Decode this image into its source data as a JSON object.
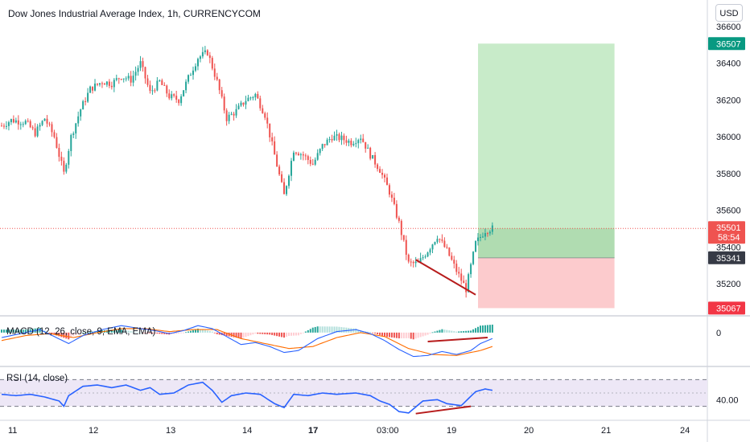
{
  "header": {
    "title": "Dow Jones Industrial Average Index, 1h, CURRENCYCOM",
    "currency": "USD"
  },
  "colors": {
    "up": "#26a69a",
    "down": "#ef5350",
    "macd_line": "#2962ff",
    "signal_line": "#ff6d00",
    "rsi_line": "#2962ff",
    "rsi_band": "#ede7f6",
    "profit_zone": "#c8ebc9",
    "loss_zone": "#fccbcd",
    "divergence": "#b71c1c",
    "target_tag": "#089981",
    "stop_tag": "#f23645",
    "entry_tag": "#363a45"
  },
  "chart_data": [
    {
      "type": "candlestick",
      "pane": "price",
      "title": "Dow Jones Industrial Average Index, 1h, CURRENCYCOM",
      "ylim": [
        35020,
        36720
      ],
      "y_ticks": [
        35200,
        35400,
        35600,
        35800,
        36000,
        36200,
        36400,
        36600
      ],
      "y_tick_labels": [
        "35200",
        "35400",
        "35600",
        "35800",
        "36000",
        "36200",
        "36400",
        "36600"
      ],
      "x_tick_labels": [
        "11",
        "12",
        "13",
        "14",
        "17",
        "03:00",
        "19",
        "20",
        "21",
        "24"
      ],
      "x_tick_bold": [
        false,
        false,
        false,
        false,
        true,
        false,
        false,
        false,
        false,
        false
      ],
      "anchors": [
        [
          0,
          36060
        ],
        [
          4,
          36090
        ],
        [
          10,
          36080
        ],
        [
          14,
          36020
        ],
        [
          18,
          36100
        ],
        [
          22,
          36000
        ],
        [
          26,
          35800
        ],
        [
          29,
          36000
        ],
        [
          33,
          36150
        ],
        [
          37,
          36260
        ],
        [
          42,
          36300
        ],
        [
          46,
          36290
        ],
        [
          50,
          36330
        ],
        [
          54,
          36310
        ],
        [
          58,
          36400
        ],
        [
          62,
          36240
        ],
        [
          66,
          36300
        ],
        [
          70,
          36220
        ],
        [
          74,
          36200
        ],
        [
          78,
          36320
        ],
        [
          82,
          36430
        ],
        [
          86,
          36460
        ],
        [
          90,
          36300
        ],
        [
          94,
          36100
        ],
        [
          98,
          36140
        ],
        [
          102,
          36200
        ],
        [
          106,
          36230
        ],
        [
          110,
          36120
        ],
        [
          114,
          35900
        ],
        [
          118,
          35680
        ],
        [
          122,
          35930
        ],
        [
          126,
          35900
        ],
        [
          130,
          35850
        ],
        [
          134,
          35950
        ],
        [
          138,
          36000
        ],
        [
          142,
          35990
        ],
        [
          146,
          35970
        ],
        [
          150,
          36000
        ],
        [
          154,
          35900
        ],
        [
          158,
          35820
        ],
        [
          162,
          35700
        ],
        [
          166,
          35530
        ],
        [
          170,
          35310
        ],
        [
          174,
          35310
        ],
        [
          178,
          35380
        ],
        [
          182,
          35460
        ],
        [
          186,
          35380
        ],
        [
          190,
          35270
        ],
        [
          194,
          35170
        ],
        [
          198,
          35420
        ],
        [
          202,
          35490
        ],
        [
          205,
          35501
        ]
      ],
      "last_price": "35501",
      "countdown": "58:54",
      "position": {
        "type": "long",
        "target": "36507",
        "entry": "35341",
        "stop": "35067",
        "target_value": 36507,
        "entry_value": 35341,
        "stop_value": 35067
      },
      "divergence_line": {
        "from": [
          173,
          35330
        ],
        "to": [
          198,
          35140
        ]
      }
    },
    {
      "type": "macd",
      "pane": "macd",
      "label": "MACD (12, 26, close, 9, EMA, EMA)",
      "y_tick_labels": [
        "0"
      ],
      "zero_value": 0,
      "anchors_macd": [
        [
          0,
          -25
        ],
        [
          8,
          -5
        ],
        [
          16,
          15
        ],
        [
          22,
          -20
        ],
        [
          28,
          -55
        ],
        [
          34,
          -15
        ],
        [
          42,
          15
        ],
        [
          50,
          35
        ],
        [
          58,
          20
        ],
        [
          64,
          10
        ],
        [
          70,
          -5
        ],
        [
          76,
          10
        ],
        [
          82,
          35
        ],
        [
          88,
          20
        ],
        [
          94,
          -20
        ],
        [
          100,
          -60
        ],
        [
          106,
          -50
        ],
        [
          112,
          -70
        ],
        [
          118,
          -100
        ],
        [
          124,
          -90
        ],
        [
          132,
          -30
        ],
        [
          140,
          5
        ],
        [
          148,
          15
        ],
        [
          154,
          -5
        ],
        [
          160,
          -40
        ],
        [
          166,
          -85
        ],
        [
          172,
          -120
        ],
        [
          178,
          -115
        ],
        [
          184,
          -95
        ],
        [
          190,
          -110
        ],
        [
          196,
          -90
        ],
        [
          200,
          -55
        ],
        [
          205,
          -30
        ]
      ],
      "anchors_signal": [
        [
          0,
          -40
        ],
        [
          10,
          -15
        ],
        [
          20,
          -5
        ],
        [
          30,
          -25
        ],
        [
          40,
          0
        ],
        [
          50,
          20
        ],
        [
          60,
          20
        ],
        [
          70,
          5
        ],
        [
          80,
          15
        ],
        [
          90,
          15
        ],
        [
          100,
          -30
        ],
        [
          110,
          -55
        ],
        [
          120,
          -80
        ],
        [
          130,
          -70
        ],
        [
          140,
          -25
        ],
        [
          150,
          0
        ],
        [
          160,
          -20
        ],
        [
          170,
          -80
        ],
        [
          180,
          -110
        ],
        [
          190,
          -115
        ],
        [
          200,
          -90
        ],
        [
          205,
          -70
        ]
      ],
      "ylim": [
        -150,
        60
      ],
      "divergence_line": {
        "from": [
          178,
          -45
        ],
        "to": [
          203,
          -25
        ]
      }
    },
    {
      "type": "rsi",
      "pane": "rsi",
      "label": "RSI (14, close)",
      "y_tick_labels": [
        "40.00"
      ],
      "ylim": [
        15,
        85
      ],
      "band": [
        30,
        70
      ],
      "midline": 50,
      "anchors": [
        [
          0,
          48
        ],
        [
          6,
          46
        ],
        [
          12,
          48
        ],
        [
          18,
          44
        ],
        [
          24,
          38
        ],
        [
          26,
          30
        ],
        [
          28,
          46
        ],
        [
          34,
          60
        ],
        [
          40,
          62
        ],
        [
          46,
          58
        ],
        [
          52,
          62
        ],
        [
          58,
          54
        ],
        [
          62,
          58
        ],
        [
          66,
          48
        ],
        [
          72,
          50
        ],
        [
          78,
          62
        ],
        [
          84,
          66
        ],
        [
          88,
          54
        ],
        [
          92,
          36
        ],
        [
          96,
          46
        ],
        [
          102,
          50
        ],
        [
          108,
          48
        ],
        [
          114,
          34
        ],
        [
          118,
          28
        ],
        [
          122,
          48
        ],
        [
          128,
          46
        ],
        [
          134,
          50
        ],
        [
          140,
          48
        ],
        [
          148,
          50
        ],
        [
          154,
          46
        ],
        [
          158,
          38
        ],
        [
          162,
          33
        ],
        [
          166,
          22
        ],
        [
          170,
          20
        ],
        [
          176,
          38
        ],
        [
          182,
          40
        ],
        [
          186,
          34
        ],
        [
          192,
          31
        ],
        [
          198,
          52
        ],
        [
          202,
          56
        ],
        [
          205,
          54
        ]
      ],
      "divergence_line": {
        "from": [
          173,
          19
        ],
        "to": [
          196,
          30
        ]
      }
    }
  ]
}
